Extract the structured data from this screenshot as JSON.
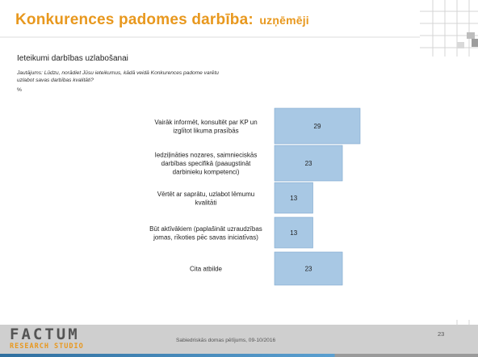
{
  "slide": {
    "title": "Konkurences padomes darbība:",
    "title_suffix": "uzņēmēji",
    "section_label": "Ieteikumi darbības uzlabošanai",
    "question": "Jautājums: Lūdzu, norādiet Jūsu ieteikumus, kādā veidā Konkurences padome varētu uzlabot savas darbības kvalitāti?",
    "unit": "%"
  },
  "footer": {
    "logo_main": "FACTUM",
    "logo_sub": "RESEARCH STUDIO",
    "source": "Sabiedriskās domas pētījums, 09-10/2016",
    "page_number": "23"
  },
  "colors": {
    "title": "#e8981e",
    "bar_fill": "#a8c8e4",
    "bar_stroke": "#7fa9cf",
    "footer_band": "#cfcfcf"
  },
  "chart_data": {
    "type": "bar",
    "orientation": "horizontal",
    "categories": [
      [
        "Vairāk informēt, konsultēt par KP un",
        "izglītot likuma prasībās"
      ],
      [
        "Iedziļināties nozares, saimnieciskās",
        "darbības specifikā (paaugstināt",
        "darbinieku kompetenci)"
      ],
      [
        "Vērtēt ar saprātu, uzlabot lēmumu",
        "kvalitāti"
      ],
      [
        "Būt aktīvākiem (paplašināt uzraudzības",
        "jomas, rīkoties pēc savas iniciatīvas)"
      ],
      [
        "Cita atbilde"
      ]
    ],
    "values": [
      29,
      23,
      13,
      13,
      23
    ],
    "data_labels": [
      "29",
      "23",
      "13",
      "13",
      "23"
    ],
    "xlim": [
      0,
      29
    ],
    "grid": false,
    "legend": "none"
  }
}
